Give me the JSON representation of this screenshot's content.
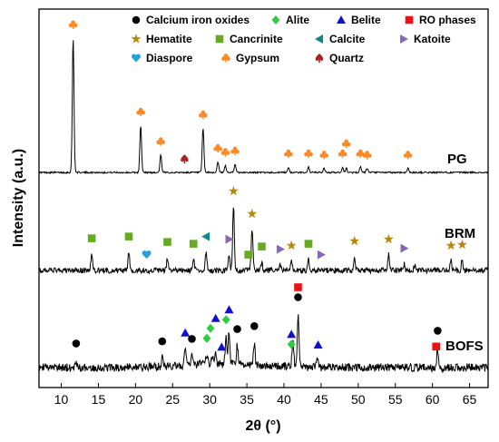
{
  "chart_data": {
    "type": "line",
    "title": "",
    "xlabel": "2θ (°)",
    "ylabel": "Intensity (a.u.)",
    "xlim": [
      7,
      67.5
    ],
    "xticks": [
      10,
      15,
      20,
      25,
      30,
      35,
      40,
      45,
      50,
      55,
      60,
      65
    ],
    "yticks_shown": false,
    "legend_position": "top",
    "legend": [
      {
        "key": "ci",
        "name": "Calcium iron oxides",
        "marker": "circle",
        "color": "#000000"
      },
      {
        "key": "al",
        "name": "Alite",
        "marker": "diamond",
        "color": "#2ecc40"
      },
      {
        "key": "be",
        "name": "Belite",
        "marker": "triangle-up",
        "color": "#1111cc"
      },
      {
        "key": "ro",
        "name": "RO phases",
        "marker": "square",
        "color": "#ee1111"
      },
      {
        "key": "he",
        "name": "Hematite",
        "marker": "star",
        "color": "#b8860b"
      },
      {
        "key": "ca",
        "name": "Cancrinite",
        "marker": "square",
        "color": "#66aa22"
      },
      {
        "key": "cl",
        "name": "Calcite",
        "marker": "triangle-left",
        "color": "#118888"
      },
      {
        "key": "ka",
        "name": "Katoite",
        "marker": "triangle-right",
        "color": "#8866bb"
      },
      {
        "key": "di",
        "name": "Diaspore",
        "marker": "heart",
        "color": "#22a0e0"
      },
      {
        "key": "gy",
        "name": "Gypsum",
        "marker": "club",
        "color": "#ff8822"
      },
      {
        "key": "qu",
        "name": "Quartz",
        "marker": "spade",
        "color": "#aa2222"
      }
    ],
    "series": [
      {
        "name": "PG",
        "baseline": 0.02,
        "noise": 0.006,
        "peaks": [
          [
            11.6,
            1.0
          ],
          [
            20.7,
            0.35
          ],
          [
            23.4,
            0.13
          ],
          [
            29.1,
            0.33
          ],
          [
            31.1,
            0.08
          ],
          [
            32.1,
            0.05
          ],
          [
            33.4,
            0.06
          ],
          [
            40.6,
            0.04
          ],
          [
            43.3,
            0.04
          ],
          [
            45.4,
            0.03
          ],
          [
            47.9,
            0.04
          ],
          [
            48.4,
            0.03
          ],
          [
            50.3,
            0.04
          ],
          [
            51.2,
            0.03
          ],
          [
            56.7,
            0.03
          ]
        ],
        "markers": [
          {
            "x": 11.6,
            "phase": "gy"
          },
          {
            "x": 20.7,
            "phase": "gy"
          },
          {
            "x": 23.4,
            "phase": "gy"
          },
          {
            "x": 26.6,
            "phase": "qu"
          },
          {
            "x": 29.1,
            "phase": "gy"
          },
          {
            "x": 31.1,
            "phase": "gy"
          },
          {
            "x": 32.1,
            "phase": "gy"
          },
          {
            "x": 33.4,
            "phase": "gy"
          },
          {
            "x": 40.6,
            "phase": "gy"
          },
          {
            "x": 43.3,
            "phase": "gy"
          },
          {
            "x": 45.4,
            "phase": "gy"
          },
          {
            "x": 47.9,
            "phase": "gy"
          },
          {
            "x": 48.4,
            "phase": "gy"
          },
          {
            "x": 50.3,
            "phase": "gy"
          },
          {
            "x": 51.2,
            "phase": "gy"
          },
          {
            "x": 56.7,
            "phase": "gy"
          }
        ]
      },
      {
        "name": "BRM",
        "baseline": 0.04,
        "noise": 0.03,
        "peaks": [
          [
            14.1,
            0.18
          ],
          [
            19.1,
            0.2
          ],
          [
            24.3,
            0.14
          ],
          [
            27.8,
            0.12
          ],
          [
            29.5,
            0.2
          ],
          [
            32.6,
            0.17
          ],
          [
            33.2,
            0.7
          ],
          [
            35.7,
            0.45
          ],
          [
            37.0,
            0.09
          ],
          [
            39.5,
            0.06
          ],
          [
            41.0,
            0.1
          ],
          [
            43.3,
            0.12
          ],
          [
            49.5,
            0.15
          ],
          [
            54.1,
            0.17
          ],
          [
            56.2,
            0.07
          ],
          [
            57.6,
            0.06
          ],
          [
            62.5,
            0.1
          ],
          [
            64.0,
            0.11
          ]
        ],
        "markers": [
          {
            "x": 14.1,
            "phase": "ca"
          },
          {
            "x": 19.1,
            "phase": "ca"
          },
          {
            "x": 21.5,
            "phase": "di"
          },
          {
            "x": 24.3,
            "phase": "ca"
          },
          {
            "x": 27.8,
            "phase": "ca"
          },
          {
            "x": 29.5,
            "phase": "cl"
          },
          {
            "x": 32.6,
            "phase": "ka"
          },
          {
            "x": 33.2,
            "phase": "he"
          },
          {
            "x": 35.2,
            "phase": "ca"
          },
          {
            "x": 35.7,
            "phase": "he"
          },
          {
            "x": 37.0,
            "phase": "ca"
          },
          {
            "x": 39.5,
            "phase": "ka"
          },
          {
            "x": 41.0,
            "phase": "he"
          },
          {
            "x": 43.3,
            "phase": "ca"
          },
          {
            "x": 45.0,
            "phase": "ka"
          },
          {
            "x": 49.5,
            "phase": "he"
          },
          {
            "x": 54.1,
            "phase": "he"
          },
          {
            "x": 56.2,
            "phase": "ka"
          },
          {
            "x": 62.5,
            "phase": "he"
          },
          {
            "x": 64.0,
            "phase": "he"
          }
        ]
      },
      {
        "name": "BOFS",
        "baseline": 0.05,
        "noise": 0.045,
        "peaks": [
          [
            12.0,
            0.08
          ],
          [
            23.6,
            0.09
          ],
          [
            26.7,
            0.17
          ],
          [
            27.6,
            0.1
          ],
          [
            29.6,
            0.1
          ],
          [
            30.3,
            0.1
          ],
          [
            30.8,
            0.12
          ],
          [
            32.2,
            0.3
          ],
          [
            32.6,
            0.34
          ],
          [
            33.7,
            0.2
          ],
          [
            36.0,
            0.24
          ],
          [
            41.2,
            0.28
          ],
          [
            41.9,
            0.58
          ],
          [
            44.5,
            0.09
          ],
          [
            60.7,
            0.22
          ]
        ],
        "markers": [
          {
            "x": 12.0,
            "phase": "ci"
          },
          {
            "x": 23.6,
            "phase": "ci"
          },
          {
            "x": 26.7,
            "phase": "be"
          },
          {
            "x": 27.6,
            "phase": "ci"
          },
          {
            "x": 29.6,
            "phase": "al"
          },
          {
            "x": 30.1,
            "phase": "al"
          },
          {
            "x": 30.8,
            "phase": "be"
          },
          {
            "x": 32.2,
            "phase": "al"
          },
          {
            "x": 32.6,
            "phase": "be"
          },
          {
            "x": 31.6,
            "phase": "be"
          },
          {
            "x": 33.7,
            "phase": "ci"
          },
          {
            "x": 36.0,
            "phase": "ci"
          },
          {
            "x": 41.0,
            "phase": "al"
          },
          {
            "x": 41.0,
            "phase": "be"
          },
          {
            "x": 41.9,
            "phase": "ci"
          },
          {
            "x": 41.9,
            "phase": "ro"
          },
          {
            "x": 44.6,
            "phase": "be"
          },
          {
            "x": 60.5,
            "phase": "ro"
          },
          {
            "x": 60.7,
            "phase": "ci"
          }
        ]
      }
    ]
  }
}
